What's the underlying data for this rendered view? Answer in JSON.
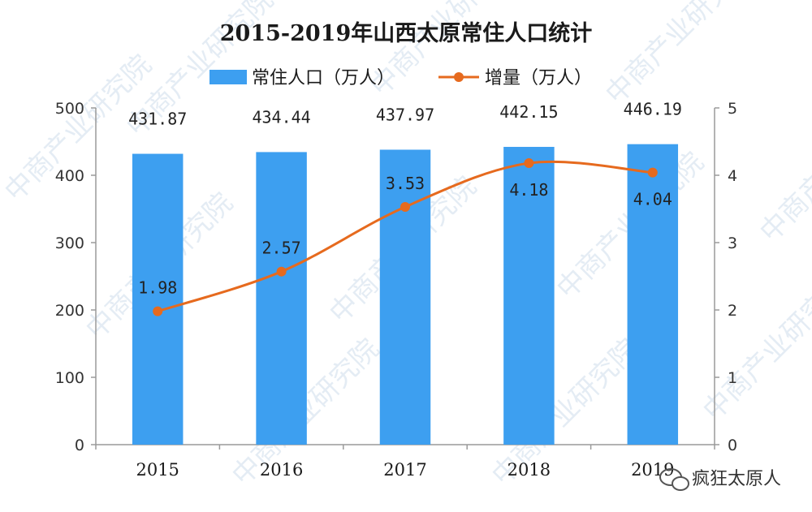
{
  "title": "2015-2019年山西太原常住人口统计",
  "legend": {
    "bar_label": "常住人口（万人）",
    "line_label": "增量（万人）"
  },
  "watermark_text": "中商产业研究院",
  "brand_label": "疯狂太原人",
  "colors": {
    "bar": "#3d9ff0",
    "line": "#e66a1e",
    "axis": "#9a9a9a"
  },
  "chart_data": {
    "type": "bar",
    "categories": [
      "2015",
      "2016",
      "2017",
      "2018",
      "2019"
    ],
    "series": [
      {
        "name": "常住人口（万人）",
        "type": "bar",
        "axis": "left",
        "values": [
          431.87,
          434.44,
          437.97,
          442.15,
          446.19
        ],
        "labels": [
          "431.87",
          "434.44",
          "437.97",
          "442.15",
          "446.19"
        ]
      },
      {
        "name": "增量（万人）",
        "type": "line",
        "axis": "right",
        "values": [
          1.98,
          2.57,
          3.53,
          4.18,
          4.04
        ],
        "labels": [
          "1.98",
          "2.57",
          "3.53",
          "4.18",
          "4.04"
        ]
      }
    ],
    "ylim_left": [
      0,
      500
    ],
    "yticks_left": [
      "0",
      "100",
      "200",
      "300",
      "400",
      "500"
    ],
    "ylim_right": [
      0,
      5
    ],
    "yticks_right": [
      "0",
      "1",
      "2",
      "3",
      "4",
      "5"
    ],
    "grid": false,
    "legend_position": "top-center"
  }
}
